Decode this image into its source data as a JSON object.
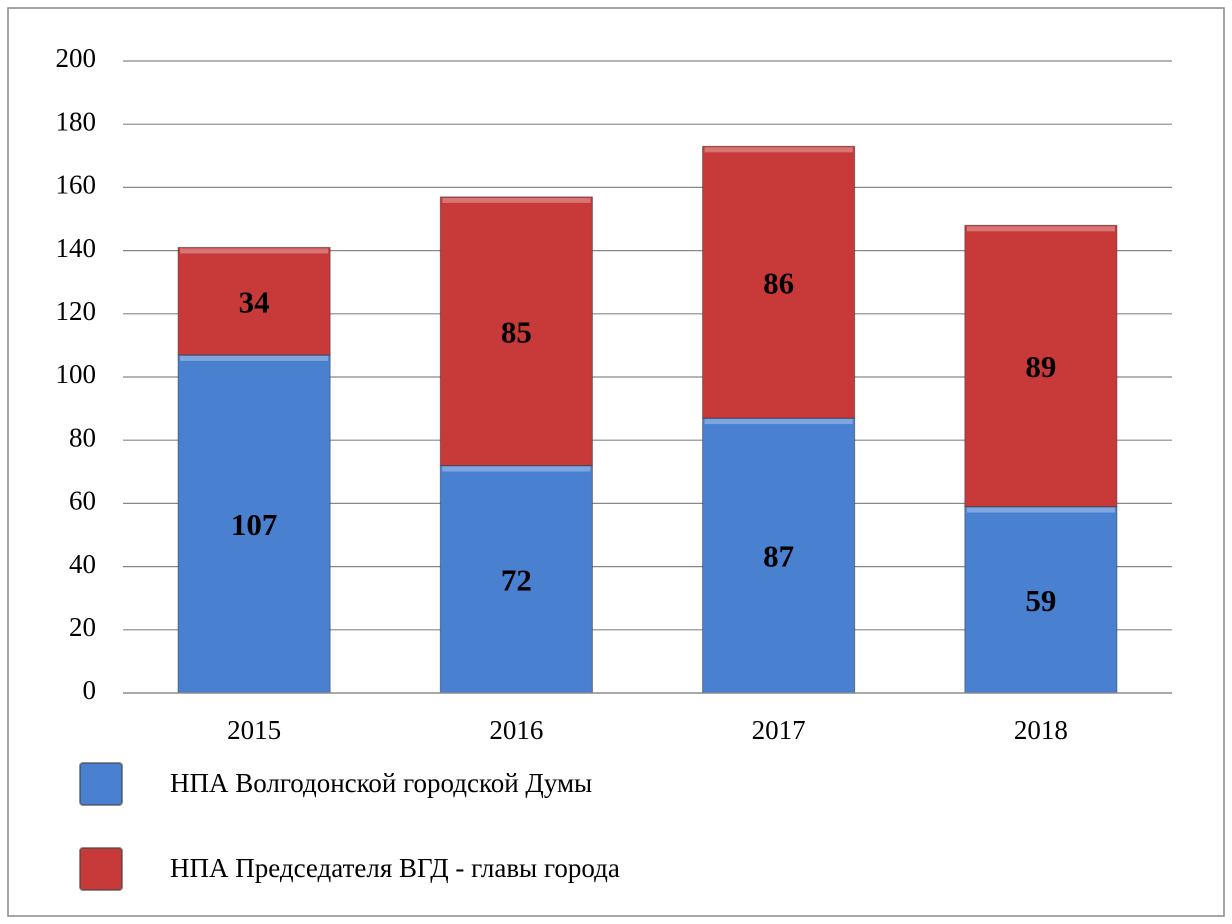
{
  "chart_data": {
    "type": "bar",
    "stacked": true,
    "categories": [
      "2015",
      "2016",
      "2017",
      "2018"
    ],
    "series": [
      {
        "name": "НПА Волгодонской городской Думы",
        "color": "#4a80d0",
        "values": [
          107,
          72,
          87,
          59
        ]
      },
      {
        "name": "НПА Председателя ВГД - главы города",
        "color": "#c83a3a",
        "values": [
          34,
          85,
          86,
          89
        ]
      }
    ],
    "ylim": [
      0,
      200
    ],
    "yticks": [
      0,
      20,
      40,
      60,
      80,
      100,
      120,
      140,
      160,
      180,
      200
    ],
    "grid": true
  }
}
